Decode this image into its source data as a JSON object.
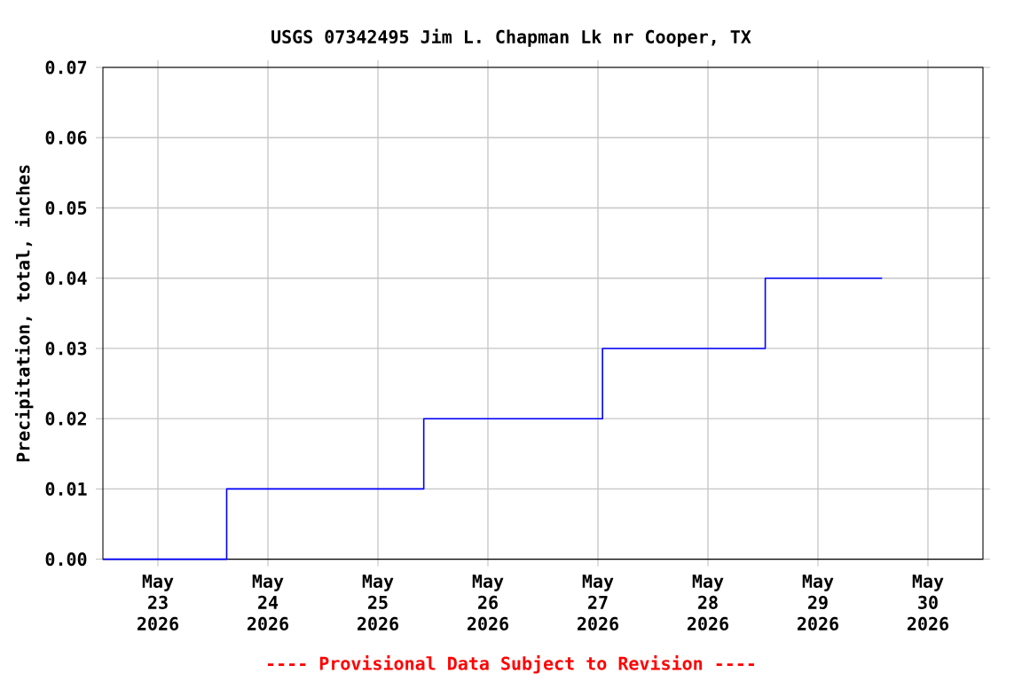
{
  "chart_data": {
    "type": "step",
    "title": "USGS 07342495 Jim L. Chapman Lk nr Cooper, TX",
    "ylabel": "Precipitation, total, inches",
    "annotations": [
      "---- Provisional Data Subject to Revision ----"
    ],
    "x": [
      "2026-05-22T12:00",
      "2026-05-23T15:00",
      "2026-05-25T10:00",
      "2026-05-27T01:00",
      "2026-05-28T12:30",
      "2026-05-29T14:00"
    ],
    "values": [
      0,
      0.01,
      0.02,
      0.03,
      0.04,
      0.04
    ],
    "color": "#0000ff",
    "xlim": [
      "2026-05-22T12:00",
      "2026-05-30T12:00"
    ],
    "xticks": [
      {
        "value": "2026-05-23",
        "label": "May 23 2026"
      },
      {
        "value": "2026-05-24",
        "label": "May 24 2026"
      },
      {
        "value": "2026-05-25",
        "label": "May 25 2026"
      },
      {
        "value": "2026-05-26",
        "label": "May 26 2026"
      },
      {
        "value": "2026-05-27",
        "label": "May 27 2026"
      },
      {
        "value": "2026-05-28",
        "label": "May 28 2026"
      },
      {
        "value": "2026-05-29",
        "label": "May 29 2026"
      },
      {
        "value": "2026-05-30",
        "label": "May 30 2026"
      }
    ],
    "ylim": [
      0,
      0.07
    ],
    "yticks": [
      {
        "value": 0,
        "label": "0.00"
      },
      {
        "value": 0.01,
        "label": "0.01"
      },
      {
        "value": 0.02,
        "label": "0.02"
      },
      {
        "value": 0.03,
        "label": "0.03"
      },
      {
        "value": 0.04,
        "label": "0.04"
      },
      {
        "value": 0.05,
        "label": "0.05"
      },
      {
        "value": 0.06,
        "label": "0.06"
      },
      {
        "value": 0.07,
        "label": "0.07"
      }
    ],
    "grid": true,
    "marker": "none",
    "line_style": "solid"
  }
}
